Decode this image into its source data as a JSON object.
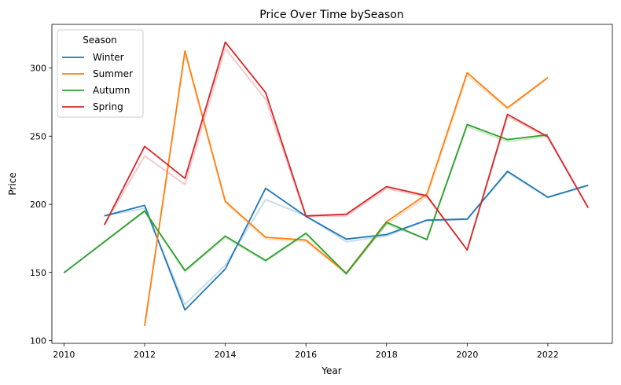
{
  "chart_data": {
    "type": "line",
    "title": "Price Over Time bySeason",
    "xlabel": "Year",
    "ylabel": "Price",
    "xlim": [
      2009.7,
      2023.6
    ],
    "ylim": [
      98,
      332
    ],
    "xticks": [
      2010,
      2012,
      2014,
      2016,
      2018,
      2020,
      2022
    ],
    "yticks": [
      100,
      150,
      200,
      250,
      300
    ],
    "grid": false,
    "legend": {
      "title": "Season",
      "placement": "top-left"
    },
    "series": [
      {
        "name": "Winter",
        "color": "#1f77b4",
        "x": [
          2011,
          2012,
          2013,
          2014,
          2015,
          2016,
          2017,
          2018,
          2019,
          2020,
          2021,
          2022,
          2023
        ],
        "values": [
          191.5,
          199.2,
          122.5,
          152.5,
          211.8,
          191.2,
          174.5,
          177.8,
          188.4,
          189.2,
          224.2,
          205.2,
          214.0
        ],
        "shadow": [
          191.5,
          197.0,
          126.5,
          155.5,
          203.5,
          191.5,
          172.5,
          176.8,
          188.0,
          188.8,
          223.5,
          205.0,
          213.5
        ]
      },
      {
        "name": "Summer",
        "color": "#ff7f0e",
        "x": [
          2012,
          2013,
          2014,
          2015,
          2016,
          2017,
          2018,
          2019,
          2020,
          2021,
          2022
        ],
        "values": [
          110.8,
          312.5,
          202.2,
          175.8,
          173.8,
          149.5,
          187.2,
          207.5,
          296.5,
          270.8,
          293.0
        ],
        "shadow": [
          110.8,
          311.0,
          201.5,
          174.5,
          172.8,
          149.0,
          185.5,
          205.5,
          294.5,
          270.0,
          292.5
        ]
      },
      {
        "name": "Autumn",
        "color": "#2ca02c",
        "x": [
          2010,
          2012,
          2013,
          2014,
          2015,
          2016,
          2017,
          2018,
          2019,
          2020,
          2021,
          2022
        ],
        "values": [
          149.8,
          195.2,
          151.5,
          176.7,
          158.8,
          178.8,
          149.2,
          186.8,
          174.2,
          258.5,
          247.5,
          251.0
        ],
        "shadow": [
          149.8,
          194.5,
          150.5,
          175.8,
          158.2,
          178.0,
          148.8,
          185.5,
          174.0,
          257.0,
          246.0,
          250.0
        ]
      },
      {
        "name": "Spring",
        "color": "#d62728",
        "x": [
          2011,
          2012,
          2013,
          2014,
          2015,
          2016,
          2017,
          2018,
          2019,
          2020,
          2021,
          2022,
          2023
        ],
        "values": [
          184.8,
          242.5,
          219.0,
          319.0,
          282.0,
          191.5,
          192.7,
          213.0,
          206.3,
          166.5,
          266.0,
          249.6,
          197.5
        ],
        "shadow": [
          184.8,
          235.5,
          214.5,
          314.5,
          277.0,
          191.0,
          191.5,
          211.5,
          205.5,
          166.5,
          264.5,
          249.0,
          197.5
        ]
      }
    ]
  }
}
